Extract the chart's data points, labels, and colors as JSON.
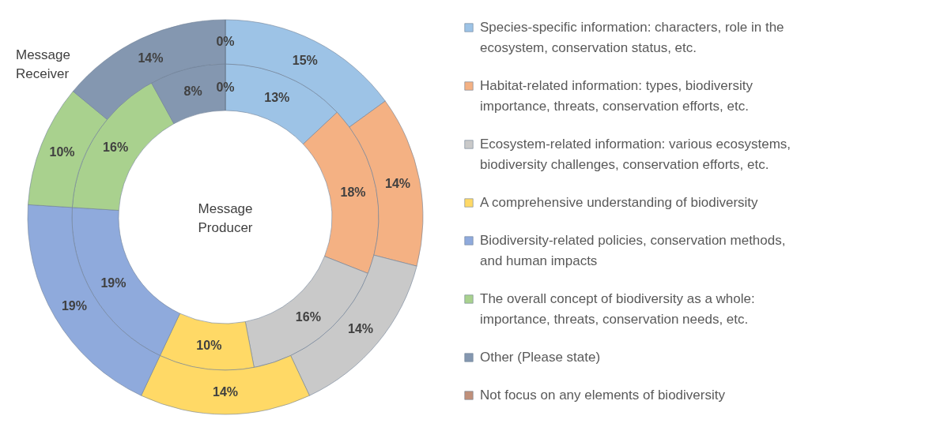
{
  "chart_data": {
    "type": "donut",
    "categories": [
      "Species-specific information: characters, role in the ecosystem, conservation status, etc.",
      "Habitat-related information: types, biodiversity importance, threats, conservation efforts, etc.",
      "Ecosystem-related information: various ecosystems, biodiversity challenges, conservation efforts, etc.",
      "A comprehensive understanding of biodiversity",
      "Biodiversity-related policies, conservation methods, and human impacts",
      "The overall concept of biodiversity as a whole: importance, threats, conservation needs, etc.",
      "Other (Please state)",
      "Not focus on any elements of biodiversity"
    ],
    "colors": [
      "#9dc3e6",
      "#f4b183",
      "#c9c9c9",
      "#ffd966",
      "#8faadc",
      "#a9d18e",
      "#8497b0",
      "#c0907a"
    ],
    "series": [
      {
        "name": "Message Producer",
        "values": [
          13,
          18,
          16,
          10,
          19,
          16,
          8,
          0
        ],
        "value_labels": [
          "13%",
          "18%",
          "16%",
          "10%",
          "19%",
          "16%",
          "8%",
          "0%"
        ]
      },
      {
        "name": "Message Receiver",
        "values": [
          15,
          14,
          14,
          14,
          19,
          10,
          14,
          0
        ],
        "value_labels": [
          "15%",
          "14%",
          "14%",
          "14%",
          "19%",
          "10%",
          "14%",
          "0%"
        ]
      }
    ],
    "legend": "right"
  }
}
